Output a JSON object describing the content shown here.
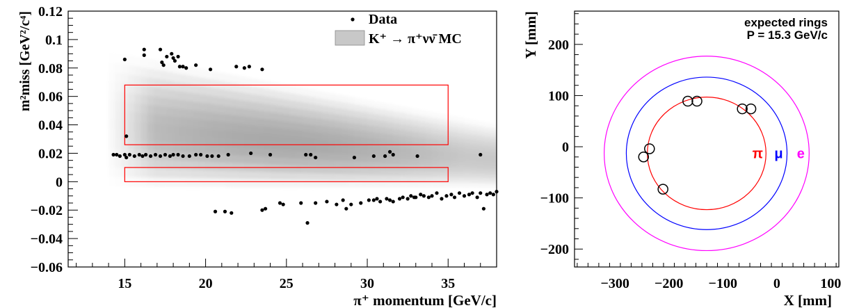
{
  "chart_data": [
    {
      "type": "scatter",
      "xlabel": "π⁺ momentum [GeV/c]",
      "ylabel": "m²miss [GeV²/c⁴]",
      "xlim": [
        11.5,
        38
      ],
      "ylim": [
        -0.06,
        0.12
      ],
      "xticks": [
        "15",
        "20",
        "25",
        "30",
        "35"
      ],
      "xtick_values": [
        15,
        20,
        25,
        30,
        35
      ],
      "yticks": [
        "−0.06",
        "−0.04",
        "−0.02",
        "0",
        "0.02",
        "0.04",
        "0.06",
        "0.08",
        "0.1",
        "0.12"
      ],
      "ytick_values": [
        -0.06,
        -0.04,
        -0.02,
        0,
        0.02,
        0.04,
        0.06,
        0.08,
        0.1,
        0.12
      ],
      "legend": {
        "placement": "top-right",
        "entries": [
          {
            "label": "Data",
            "symbol": "marker"
          },
          {
            "label": "K⁺ → π⁺νν̄ MC",
            "symbol": "box"
          }
        ]
      },
      "signal_regions": [
        {
          "x": [
            15,
            35
          ],
          "y": [
            0.026,
            0.068
          ],
          "color": "#ff0000"
        },
        {
          "x": [
            15,
            35
          ],
          "y": [
            0.0,
            0.01
          ],
          "color": "#ff0000"
        }
      ],
      "data_points": [
        [
          15.0,
          0.086
        ],
        [
          16.2,
          0.093
        ],
        [
          16.2,
          0.089
        ],
        [
          17.2,
          0.093
        ],
        [
          17.3,
          0.084
        ],
        [
          17.4,
          0.082
        ],
        [
          17.6,
          0.088
        ],
        [
          17.9,
          0.09
        ],
        [
          18.0,
          0.087
        ],
        [
          18.1,
          0.085
        ],
        [
          18.3,
          0.088
        ],
        [
          18.4,
          0.081
        ],
        [
          18.6,
          0.081
        ],
        [
          18.8,
          0.08
        ],
        [
          19.4,
          0.082
        ],
        [
          20.3,
          0.079
        ],
        [
          21.9,
          0.081
        ],
        [
          22.4,
          0.08
        ],
        [
          22.7,
          0.081
        ],
        [
          23.5,
          0.079
        ],
        [
          15.1,
          0.032
        ],
        [
          14.3,
          0.019
        ],
        [
          14.5,
          0.019
        ],
        [
          14.7,
          0.018
        ],
        [
          15.0,
          0.019
        ],
        [
          15.1,
          0.017
        ],
        [
          15.3,
          0.019
        ],
        [
          15.6,
          0.018
        ],
        [
          15.9,
          0.019
        ],
        [
          16.1,
          0.018
        ],
        [
          16.3,
          0.019
        ],
        [
          16.6,
          0.018
        ],
        [
          16.9,
          0.019
        ],
        [
          17.2,
          0.018
        ],
        [
          17.5,
          0.019
        ],
        [
          17.8,
          0.018
        ],
        [
          18.0,
          0.019
        ],
        [
          18.3,
          0.019
        ],
        [
          18.6,
          0.018
        ],
        [
          19.0,
          0.018
        ],
        [
          19.4,
          0.019
        ],
        [
          19.7,
          0.019
        ],
        [
          20.1,
          0.018
        ],
        [
          20.4,
          0.018
        ],
        [
          20.8,
          0.018
        ],
        [
          21.4,
          0.019
        ],
        [
          22.8,
          0.02
        ],
        [
          24.0,
          0.019
        ],
        [
          26.2,
          0.019
        ],
        [
          26.5,
          0.019
        ],
        [
          26.8,
          0.017
        ],
        [
          29.2,
          0.017
        ],
        [
          30.4,
          0.018
        ],
        [
          31.1,
          0.018
        ],
        [
          31.4,
          0.021
        ],
        [
          31.6,
          0.019
        ],
        [
          33.1,
          0.018
        ],
        [
          37.0,
          0.019
        ],
        [
          20.6,
          -0.021
        ],
        [
          21.2,
          -0.021
        ],
        [
          21.6,
          -0.022
        ],
        [
          23.5,
          -0.02
        ],
        [
          23.7,
          -0.019
        ],
        [
          24.6,
          -0.015
        ],
        [
          24.8,
          -0.016
        ],
        [
          25.9,
          -0.015
        ],
        [
          26.3,
          -0.029
        ],
        [
          26.8,
          -0.015
        ],
        [
          27.5,
          -0.014
        ],
        [
          28.1,
          -0.016
        ],
        [
          28.5,
          -0.013
        ],
        [
          28.7,
          -0.019
        ],
        [
          29.0,
          -0.016
        ],
        [
          29.6,
          -0.015
        ],
        [
          30.1,
          -0.013
        ],
        [
          30.4,
          -0.013
        ],
        [
          30.8,
          -0.014
        ],
        [
          31.2,
          -0.012
        ],
        [
          31.6,
          -0.014
        ],
        [
          32.0,
          -0.012
        ],
        [
          32.2,
          -0.011
        ],
        [
          32.5,
          -0.012
        ],
        [
          32.7,
          -0.01
        ],
        [
          33.0,
          -0.011
        ],
        [
          33.3,
          -0.009
        ],
        [
          33.5,
          -0.01
        ],
        [
          33.8,
          -0.011
        ],
        [
          34.0,
          -0.01
        ],
        [
          34.3,
          -0.008
        ],
        [
          34.6,
          -0.012
        ],
        [
          34.9,
          -0.01
        ],
        [
          35.2,
          -0.009
        ],
        [
          35.4,
          -0.011
        ],
        [
          35.7,
          -0.008
        ],
        [
          36.0,
          -0.01
        ],
        [
          36.3,
          -0.009
        ],
        [
          36.5,
          -0.008
        ],
        [
          36.8,
          -0.011
        ],
        [
          37.0,
          -0.008
        ],
        [
          37.2,
          -0.019
        ],
        [
          37.4,
          -0.009
        ],
        [
          37.6,
          -0.008
        ],
        [
          37.8,
          -0.009
        ],
        [
          38.0,
          -0.007
        ],
        [
          30.6,
          -0.012
        ],
        [
          31.4,
          -0.013
        ],
        [
          32.9,
          -0.011
        ]
      ]
    },
    {
      "type": "scatter",
      "xlabel": "X [mm]",
      "ylabel": "Y [mm]",
      "xlim": [
        -375,
        115
      ],
      "ylim": [
        -235,
        265
      ],
      "xticks": [
        "−300",
        "−200",
        "−100",
        "0",
        "100"
      ],
      "xtick_values": [
        -300,
        -200,
        -100,
        0,
        100
      ],
      "yticks": [
        "−200",
        "−100",
        "0",
        "100",
        "200"
      ],
      "ytick_values": [
        -200,
        -100,
        0,
        100,
        200
      ],
      "annotation": [
        "expected rings",
        "P = 15.3 GeV/c"
      ],
      "rings": [
        {
          "label": "π",
          "color": "#ff0000",
          "center": [
            -130,
            -13
          ],
          "radius": 110
        },
        {
          "label": "μ",
          "color": "#0000ff",
          "center": [
            -130,
            -13
          ],
          "radius": 149
        },
        {
          "label": "e",
          "color": "#ff00ff",
          "center": [
            -130,
            -13
          ],
          "radius": 190
        }
      ],
      "hits": [
        [
          -165,
          89
        ],
        [
          -148,
          89
        ],
        [
          -64,
          74
        ],
        [
          -48,
          74
        ],
        [
          -236,
          -4
        ],
        [
          -247,
          -20
        ],
        [
          -211,
          -83
        ]
      ]
    }
  ]
}
